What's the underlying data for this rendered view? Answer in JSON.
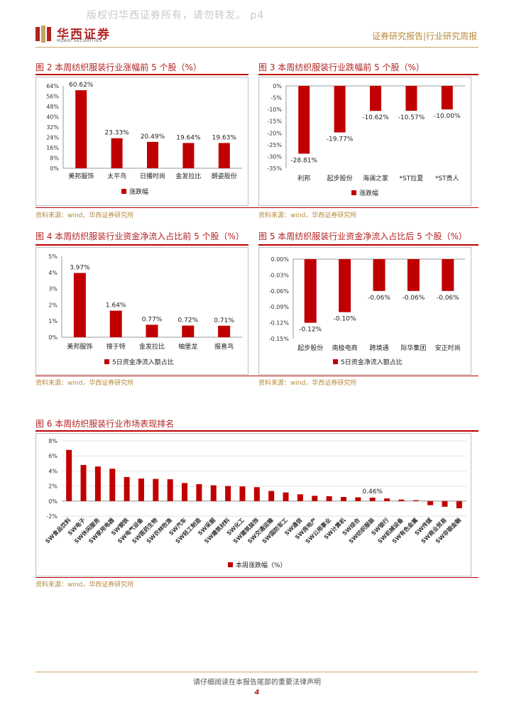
{
  "header": {
    "watermark": "版权归华西证券所有，请勿转发。 p4",
    "logo_cn": "华西证券",
    "logo_en": "HUAXI SECURITIES",
    "report_type": "证券研究报告|行业研究周报"
  },
  "colors": {
    "bar": "#c00000",
    "accent": "#b5893b",
    "title": "#b22222"
  },
  "figures": {
    "fig2": {
      "title": "图 2 本周纺织服装行业涨幅前 5 个股（%）",
      "source": "资料来源：wind，华西证券研究所"
    },
    "fig3": {
      "title": "图 3 本周纺织服装行业跌幅前 5 个股（%）",
      "source": "资料来源：wind，华西证券研究所"
    },
    "fig4": {
      "title": "图 4 本周纺织服装行业资金净流入占比前 5 个股（%）",
      "source": "资料来源：wind，华西证券研究所"
    },
    "fig5": {
      "title": "图 5 本周纺织服装行业资金净流入占比后 5 个股（%）",
      "source": "资料来源：wind，华西证券研究所"
    },
    "fig6": {
      "title": "图 6 本周纺织服装行业市场表现排名",
      "source": "资料来源：wind，华西证券研究所"
    }
  },
  "chart_data": [
    {
      "id": "fig2",
      "type": "bar",
      "categories": [
        "美邦服饰",
        "太平鸟",
        "日播时尚",
        "金发拉比",
        "朗姿股份"
      ],
      "values": [
        60.62,
        23.33,
        20.49,
        19.64,
        19.63
      ],
      "data_labels": [
        "60.62%",
        "23.33%",
        "20.49%",
        "19.64%",
        "19.63%"
      ],
      "ylim": [
        0,
        64
      ],
      "ticks": [
        0,
        8,
        16,
        24,
        32,
        40,
        48,
        56,
        64
      ],
      "tick_labels": [
        "0%",
        "8%",
        "16%",
        "24%",
        "32%",
        "40%",
        "48%",
        "56%",
        "64%"
      ],
      "legend": "涨跌幅",
      "label_position": "above"
    },
    {
      "id": "fig3",
      "type": "bar",
      "categories": [
        "利邦",
        "起步股份",
        "海澜之家",
        "*ST拉夏",
        "*ST贵人"
      ],
      "values": [
        -28.81,
        -19.77,
        -10.62,
        -10.57,
        -10.0
      ],
      "data_labels": [
        "-28.81%",
        "-19.77%",
        "-10.62%",
        "-10.57%",
        "-10.00%"
      ],
      "ylim": [
        -35,
        0
      ],
      "ticks": [
        0,
        -5,
        -10,
        -15,
        -20,
        -25,
        -30,
        -35
      ],
      "tick_labels": [
        "0%",
        "-5%",
        "-10%",
        "-15%",
        "-20%",
        "-25%",
        "-30%",
        "-35%"
      ],
      "legend": "涨跌幅",
      "label_position": "below"
    },
    {
      "id": "fig4",
      "type": "bar",
      "categories": [
        "美邦服饰",
        "搜于特",
        "金发拉比",
        "柚堡龙",
        "报喜鸟"
      ],
      "values": [
        3.97,
        1.64,
        0.77,
        0.72,
        0.71
      ],
      "data_labels": [
        "3.97%",
        "1.64%",
        "0.77%",
        "0.72%",
        "0.71%"
      ],
      "ylim": [
        0,
        5
      ],
      "ticks": [
        0,
        1,
        2,
        3,
        4,
        5
      ],
      "tick_labels": [
        "0%",
        "1%",
        "2%",
        "3%",
        "4%",
        "5%"
      ],
      "legend": "5日资金净流入额占比",
      "label_position": "above"
    },
    {
      "id": "fig5",
      "type": "bar",
      "categories": [
        "起步股份",
        "南极电商",
        "跨境通",
        "际华集团",
        "安正时尚"
      ],
      "values": [
        -0.12,
        -0.1,
        -0.06,
        -0.06,
        -0.06
      ],
      "data_labels": [
        "-0.12%",
        "-0.10%",
        "-0.06%",
        "-0.06%",
        "-0.06%"
      ],
      "ylim": [
        -0.15,
        0
      ],
      "ticks": [
        0,
        -0.03,
        -0.06,
        -0.09,
        -0.12,
        -0.15
      ],
      "tick_labels": [
        "0.00%",
        "-0.03%",
        "-0.06%",
        "-0.09%",
        "-0.12%",
        "-0.15%"
      ],
      "legend": "5日资金净流入额占比",
      "label_position": "below"
    },
    {
      "id": "fig6",
      "type": "bar",
      "categories": [
        "SW食品饮料",
        "SW电子",
        "SW休闲服务",
        "SW家用电器",
        "SW钢铁",
        "SW电气设备",
        "SW医药生物",
        "SW农林牧渔",
        "SW汽车",
        "SW轻工制造",
        "SW采掘",
        "SW建筑材料",
        "SW化工",
        "SW建筑装饰",
        "SW交通运输",
        "SW国防军工",
        "SW通信",
        "SW房地产",
        "SW公用事业",
        "SW计算机",
        "SW综合",
        "SW纺织服装",
        "SW银行",
        "SW机械设备",
        "SW有色金属",
        "SW传媒",
        "SW商业贸易",
        "SW非银金融"
      ],
      "values": [
        6.8,
        4.8,
        4.6,
        4.3,
        3.2,
        3.0,
        2.95,
        2.9,
        2.4,
        2.25,
        2.1,
        2.0,
        1.95,
        1.85,
        1.35,
        1.15,
        0.9,
        0.7,
        0.65,
        0.55,
        0.5,
        0.46,
        0.35,
        0.2,
        0.12,
        -0.55,
        -0.75,
        -0.95
      ],
      "data_labels": {
        "SW纺织服装": "0.46%"
      },
      "ylim": [
        -2,
        8
      ],
      "ticks": [
        -2,
        0,
        2,
        4,
        6,
        8
      ],
      "tick_labels": [
        "-2%",
        "0%",
        "2%",
        "4%",
        "6%",
        "8%"
      ],
      "legend": "本周涨跌幅（%）"
    }
  ],
  "footer": {
    "disclaimer": "请仔细阅读在本报告尾部的重要法律声明",
    "page_number": "4"
  }
}
